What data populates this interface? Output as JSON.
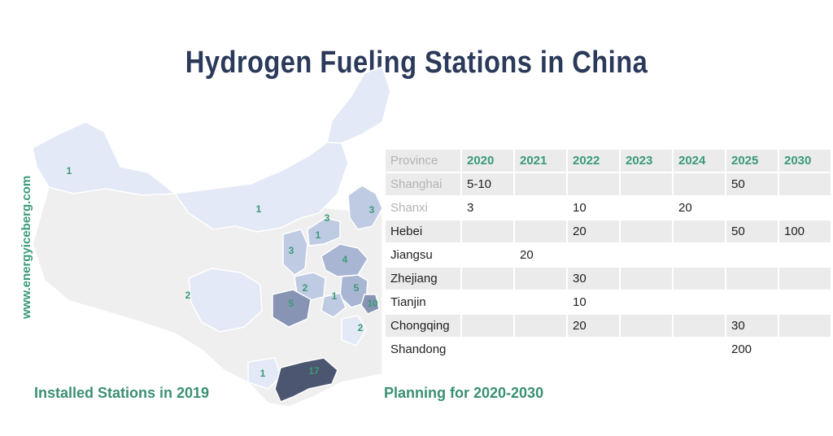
{
  "title": "Hydrogen Fueling Stations in China",
  "watermark": "www.energyiceberg.com",
  "map": {
    "caption": "Installed Stations in 2019",
    "counts": [
      "1",
      "1",
      "3",
      "3",
      "1",
      "3",
      "4",
      "2",
      "2",
      "5",
      "1",
      "5",
      "10",
      "2",
      "1",
      "17"
    ],
    "colors": {
      "none": "#efefef",
      "low": "#e3e9f6",
      "mid": "#bfcbe3",
      "midhigh": "#a9b6d3",
      "high": "#8794b4",
      "max": "#4c5670"
    }
  },
  "table": {
    "caption": "Planning for 2020-2030",
    "columns": [
      "Province",
      "2020",
      "2021",
      "2022",
      "2023",
      "2024",
      "2025",
      "2030"
    ],
    "rows": [
      [
        "Shanghai",
        "5-10",
        "",
        "",
        "",
        "",
        "50",
        ""
      ],
      [
        "Shanxi",
        "3",
        "",
        "10",
        "",
        "20",
        "",
        ""
      ],
      [
        "Hebei",
        "",
        "",
        "20",
        "",
        "",
        "50",
        "100"
      ],
      [
        "Jiangsu",
        "",
        "20",
        "",
        "",
        "",
        "",
        ""
      ],
      [
        "Zhejiang",
        "",
        "",
        "30",
        "",
        "",
        "",
        ""
      ],
      [
        "Tianjin",
        "",
        "",
        "10",
        "",
        "",
        "",
        ""
      ],
      [
        "Chongqing",
        "",
        "",
        "20",
        "",
        "",
        "30",
        ""
      ],
      [
        "Shandong",
        "",
        "",
        "",
        "",
        "",
        "200",
        ""
      ]
    ]
  },
  "chart_data": {
    "type": "table",
    "title": "Hydrogen Fueling Stations in China",
    "installed_2019_labels": [
      1,
      1,
      3,
      3,
      1,
      3,
      4,
      2,
      2,
      5,
      1,
      5,
      10,
      2,
      1,
      17
    ],
    "planning_columns": [
      "Province",
      "2020",
      "2021",
      "2022",
      "2023",
      "2024",
      "2025",
      "2030"
    ],
    "planning_rows": [
      [
        "Shanghai",
        "5-10",
        "",
        "",
        "",
        "",
        "50",
        ""
      ],
      [
        "Shanxi",
        "3",
        "",
        "10",
        "",
        "20",
        "",
        ""
      ],
      [
        "Hebei",
        "",
        "",
        "20",
        "",
        "",
        "50",
        "100"
      ],
      [
        "Jiangsu",
        "",
        "20",
        "",
        "",
        "",
        "",
        ""
      ],
      [
        "Zhejiang",
        "",
        "",
        "30",
        "",
        "",
        "",
        ""
      ],
      [
        "Tianjin",
        "",
        "",
        "10",
        "",
        "",
        "",
        ""
      ],
      [
        "Chongqing",
        "",
        "",
        "20",
        "",
        "",
        "30",
        ""
      ],
      [
        "Shandong",
        "",
        "",
        "",
        "",
        "",
        "200",
        ""
      ]
    ]
  }
}
